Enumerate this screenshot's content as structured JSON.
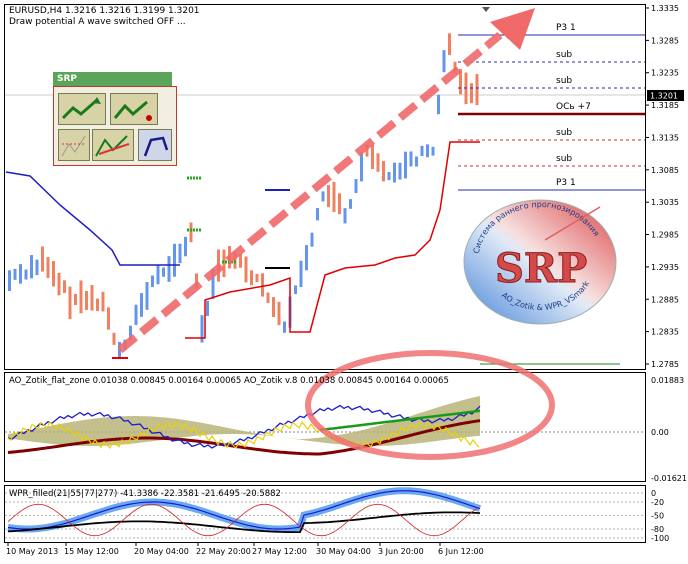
{
  "symbol_header": "EURUSD,H4  1.3216 1.3216 1.3199 1.3201",
  "status_line": "Draw potential A wave switched OFF ...",
  "price_axis": [
    "1.3335",
    "1.3285",
    "1.3235",
    "1.3185",
    "1.3135",
    "1.3085",
    "1.3035",
    "1.2985",
    "1.2935",
    "1.2885",
    "1.2835",
    "1.2785"
  ],
  "current_price": "1.3201",
  "levels": [
    {
      "label": "P3 1"
    },
    {
      "label": "sub"
    },
    {
      "label": "sub"
    },
    {
      "label": "OCь +7"
    },
    {
      "label": "sub"
    },
    {
      "label": "sub"
    },
    {
      "label": "P3 1"
    }
  ],
  "srp_panel": {
    "title": "SRP"
  },
  "logo": {
    "arc_top": "Система раннего прогнозирования",
    "arc_bottom": "AO_Zotik & WPR_VSmark",
    "letters": "SRP"
  },
  "ao_indicator": {
    "label": "AO_Zotik_flat_zone 0.01038 0.00845 0.00164 0.00065  AO_Zotik v.8 0.01038 0.00845 0.00164 0.00065",
    "axis": [
      "0.01883",
      "0.00",
      "-0.01621"
    ]
  },
  "wpr_indicator": {
    "label": "WPR_filled(21|55|77|277) -41.3386 -22.3581 -21.6495 -20.5882",
    "axis": [
      "0",
      "-20",
      "-50",
      "-80",
      "-100"
    ]
  },
  "time_axis": [
    "10 May 2013",
    "15 May 12:00",
    "20 May 04:00",
    "22 May 20:00",
    "27 May 12:00",
    "30 May 04:00",
    "3 Jun 20:00",
    "6 Jun 12:00"
  ],
  "colors": {
    "bull": "#6495ed",
    "bear": "#f08060",
    "green": "#1a8a1a",
    "olive": "#8f8a40",
    "maroon": "#800000",
    "red": "#e00000",
    "navy": "#1f1fbf"
  }
}
